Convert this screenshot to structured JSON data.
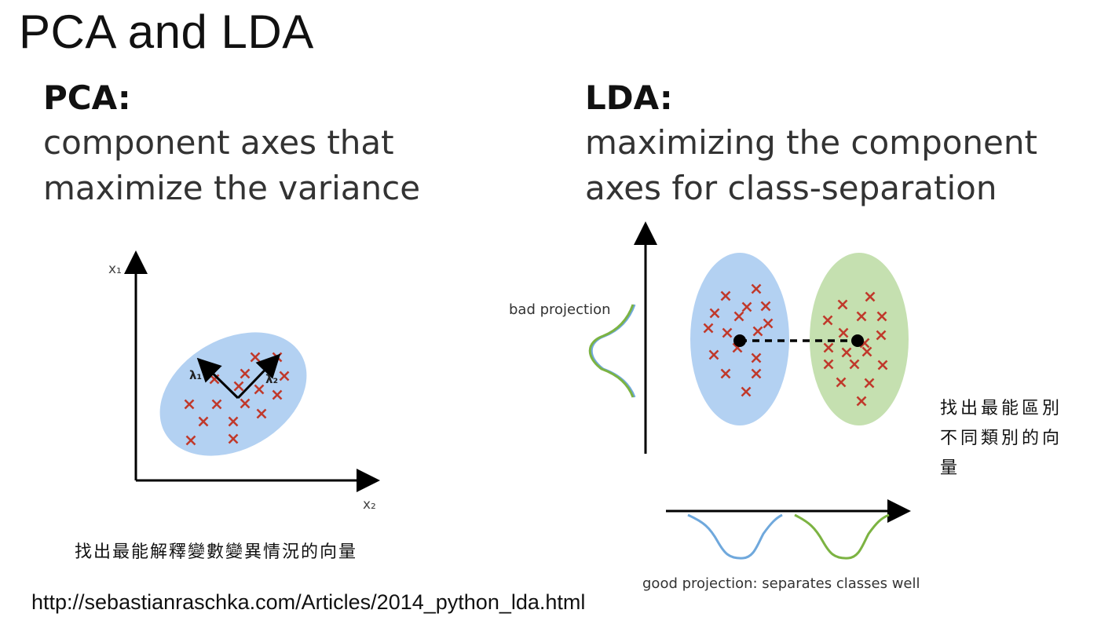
{
  "title": "PCA and LDA",
  "pca": {
    "heading": "PCA:",
    "line1": "component axes that",
    "line2": "maximize the variance",
    "diagram": {
      "axis_y_label": "x₁",
      "axis_x_label": "x₂",
      "lambda1": "λ₁",
      "lambda2": "λ₂",
      "ellipse_color": "#b3d1f2",
      "marker_color": "#c0392b"
    },
    "note": "找出最能解釋變數變異情況的向量"
  },
  "lda": {
    "heading": "LDA:",
    "line1": "maximizing the component",
    "line2": "axes for class-separation",
    "diagram": {
      "bad_label": "bad projection",
      "good_label": "good projection: separates classes well",
      "class1_color": "#b3d1f2",
      "class2_color": "#c5e0b0",
      "marker_color": "#c0392b"
    },
    "note": "找出最能區別不同類別的向量"
  },
  "source_url": "http://sebastianraschka.com/Articles/2014_python_lda.html"
}
